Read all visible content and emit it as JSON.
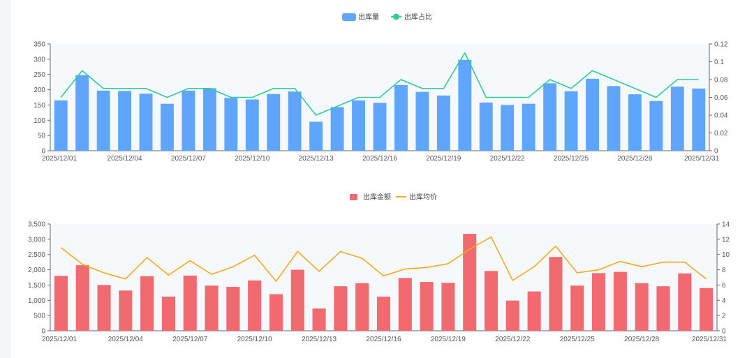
{
  "chart_data": [
    {
      "type": "bar",
      "legend": {
        "bar_label": "出库量",
        "line_label": "出库占比",
        "placement": "top-center"
      },
      "categories": [
        "2025/12/01",
        "2025/12/02",
        "2025/12/03",
        "2025/12/04",
        "2025/12/05",
        "2025/12/06",
        "2025/12/07",
        "2025/12/08",
        "2025/12/09",
        "2025/12/10",
        "2025/12/11",
        "2025/12/12",
        "2025/12/13",
        "2025/12/14",
        "2025/12/15",
        "2025/12/16",
        "2025/12/17",
        "2025/12/18",
        "2025/12/19",
        "2025/12/20",
        "2025/12/21",
        "2025/12/22",
        "2025/12/23",
        "2025/12/24",
        "2025/12/25",
        "2025/12/26",
        "2025/12/27",
        "2025/12/28",
        "2025/12/29",
        "2025/12/30",
        "2025/12/31"
      ],
      "x_tick_labels": [
        "2025/12/01",
        "2025/12/04",
        "2025/12/07",
        "2025/12/10",
        "2025/12/13",
        "2025/12/16",
        "2025/12/19",
        "2025/12/22",
        "2025/12/25",
        "2025/12/28",
        "2025/12/31"
      ],
      "series": [
        {
          "name": "出库量",
          "kind": "bar",
          "axis": "left",
          "color": "#5ea5fb",
          "values": [
            165,
            248,
            197,
            196,
            187,
            154,
            197,
            205,
            173,
            168,
            186,
            194,
            95,
            143,
            165,
            157,
            215,
            193,
            181,
            298,
            158,
            150,
            154,
            221,
            195,
            236,
            212,
            185,
            163,
            210,
            204
          ]
        },
        {
          "name": "出库占比",
          "kind": "line",
          "axis": "right",
          "color": "#2ecc9a",
          "values": [
            0.06,
            0.09,
            0.07,
            0.07,
            0.07,
            0.06,
            0.07,
            0.07,
            0.06,
            0.06,
            0.07,
            0.07,
            0.04,
            0.05,
            0.06,
            0.06,
            0.08,
            0.07,
            0.07,
            0.11,
            0.06,
            0.06,
            0.06,
            0.08,
            0.07,
            0.09,
            0.08,
            0.07,
            0.06,
            0.08,
            0.08
          ]
        }
      ],
      "y_left": {
        "min": 0,
        "max": 350,
        "ticks": [
          "0",
          "50",
          "100",
          "150",
          "200",
          "250",
          "300",
          "350"
        ]
      },
      "y_right": {
        "min": 0,
        "max": 0.12,
        "ticks": [
          "0",
          "0.02",
          "0.04",
          "0.06",
          "0.08",
          "0.1",
          "0.12"
        ]
      }
    },
    {
      "type": "bar",
      "legend": {
        "bar_label": "出库金额",
        "line_label": "出库均价",
        "placement": "top-center"
      },
      "categories": [
        "2025/12/01",
        "2025/12/02",
        "2025/12/03",
        "2025/12/04",
        "2025/12/05",
        "2025/12/06",
        "2025/12/07",
        "2025/12/08",
        "2025/12/09",
        "2025/12/10",
        "2025/12/11",
        "2025/12/12",
        "2025/12/13",
        "2025/12/14",
        "2025/12/15",
        "2025/12/16",
        "2025/12/17",
        "2025/12/18",
        "2025/12/19",
        "2025/12/20",
        "2025/12/21",
        "2025/12/22",
        "2025/12/23",
        "2025/12/24",
        "2025/12/25",
        "2025/12/26",
        "2025/12/27",
        "2025/12/28",
        "2025/12/29",
        "2025/12/30",
        "2025/12/31"
      ],
      "x_tick_labels": [
        "2025/12/01",
        "2025/12/04",
        "2025/12/07",
        "2025/12/10",
        "2025/12/13",
        "2025/12/16",
        "2025/12/19",
        "2025/12/22",
        "2025/12/25",
        "2025/12/28",
        "2025/12/31"
      ],
      "series": [
        {
          "name": "出库金额",
          "kind": "bar",
          "axis": "left",
          "color": "#f06a6f",
          "values": [
            1800,
            2150,
            1500,
            1320,
            1790,
            1120,
            1810,
            1480,
            1440,
            1650,
            1200,
            2000,
            730,
            1460,
            1560,
            1120,
            1730,
            1600,
            1570,
            3180,
            1960,
            990,
            1290,
            2420,
            1480,
            1890,
            1930,
            1560,
            1460,
            1880,
            1400
          ]
        },
        {
          "name": "出库均价",
          "kind": "line",
          "axis": "right",
          "color": "#f2aa1d",
          "values": [
            10.9,
            8.7,
            7.6,
            6.8,
            9.6,
            7.3,
            9.2,
            7.4,
            8.4,
            9.9,
            6.5,
            10.4,
            7.8,
            10.4,
            9.5,
            7.2,
            8.1,
            8.3,
            8.8,
            10.7,
            12.3,
            6.6,
            8.4,
            11.1,
            7.6,
            8.0,
            9.1,
            8.4,
            9.0,
            9.0,
            6.8
          ]
        }
      ],
      "y_left": {
        "min": 0,
        "max": 3500,
        "ticks": [
          "0",
          "500",
          "1,000",
          "1,500",
          "2,000",
          "2,500",
          "3,000",
          "3,500"
        ]
      },
      "y_right": {
        "min": 0,
        "max": 14,
        "ticks": [
          "0",
          "2",
          "4",
          "6",
          "8",
          "10",
          "12",
          "14"
        ]
      }
    }
  ]
}
